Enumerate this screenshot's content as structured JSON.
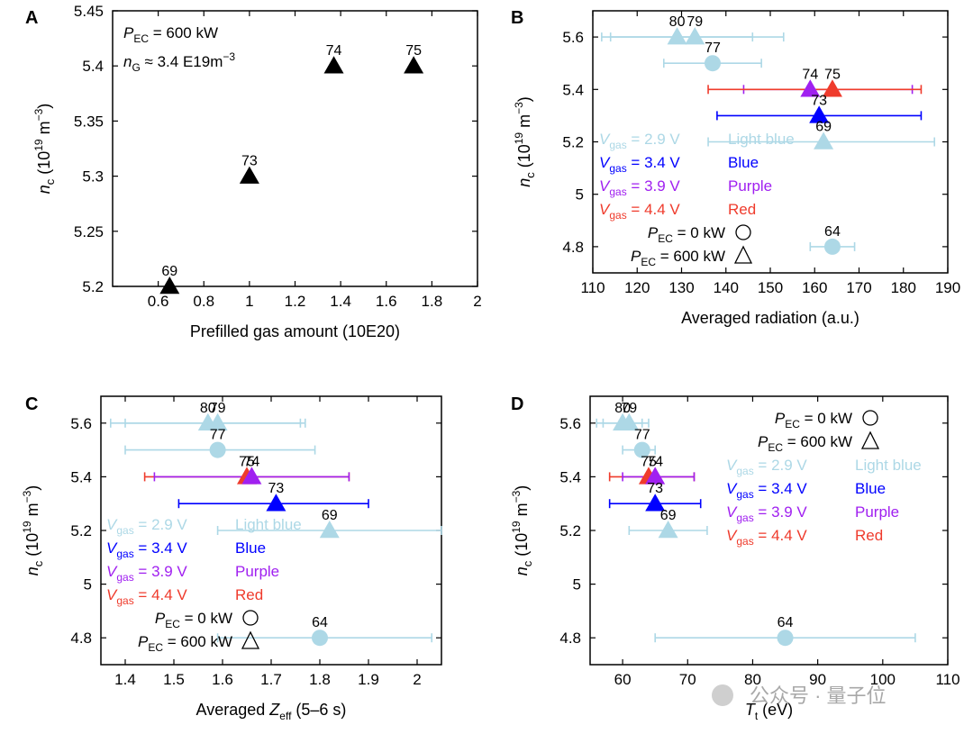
{
  "watermark": "公众号 · 量子位",
  "colors": {
    "Light blue": "#add8e6",
    "Blue": "#0000ff",
    "Purple": "#a020f0",
    "Red": "#ef3b2c",
    "Black": "#000000"
  },
  "chart_data": [
    {
      "panel": "A",
      "type": "scatter",
      "xlabel": "Prefilled gas amount (10E20)",
      "ylabel": "n_c (10^19 m^-3)",
      "xlim": [
        0.4,
        2.0
      ],
      "ylim": [
        5.2,
        5.45
      ],
      "xticks": [
        0.6,
        0.8,
        1.0,
        1.2,
        1.4,
        1.6,
        1.8,
        2.0
      ],
      "xticklabels": [
        "0.6",
        "0.8",
        "1",
        "1.2",
        "1.4",
        "1.6",
        "1.8",
        "2"
      ],
      "yticks": [
        5.2,
        5.25,
        5.3,
        5.35,
        5.4,
        5.45
      ],
      "yticklabels": [
        "5.2",
        "5.25",
        "5.3",
        "5.35",
        "5.4",
        "5.45"
      ],
      "annotations": [
        "P_EC = 600 kW",
        "n_G ≈ 3.4 E19m^-3"
      ],
      "points": [
        {
          "label": "69",
          "x": 0.65,
          "y": 5.2,
          "marker": "triangle",
          "color": "Black"
        },
        {
          "label": "73",
          "x": 1.0,
          "y": 5.3,
          "marker": "triangle",
          "color": "Black"
        },
        {
          "label": "74",
          "x": 1.37,
          "y": 5.4,
          "marker": "triangle",
          "color": "Black"
        },
        {
          "label": "75",
          "x": 1.72,
          "y": 5.4,
          "marker": "triangle",
          "color": "Black"
        }
      ]
    },
    {
      "panel": "B",
      "type": "scatter",
      "xlabel": "Averaged radiation (a.u.)",
      "ylabel": "n_c (10^19 m^-3)",
      "xlim": [
        110,
        190
      ],
      "ylim": [
        4.7,
        5.7
      ],
      "xticks": [
        110,
        120,
        130,
        140,
        150,
        160,
        170,
        180,
        190
      ],
      "xticklabels": [
        "110",
        "120",
        "130",
        "140",
        "150",
        "160",
        "170",
        "180",
        "190"
      ],
      "yticks": [
        4.8,
        5.0,
        5.2,
        5.4,
        5.6
      ],
      "yticklabels": [
        "4.8",
        "5",
        "5.2",
        "5.4",
        "5.6"
      ],
      "points": [
        {
          "label": "80",
          "x": 129,
          "y": 5.6,
          "xerr": [
            112,
            146
          ],
          "marker": "triangle",
          "color": "Light blue"
        },
        {
          "label": "79",
          "x": 133,
          "y": 5.6,
          "xerr": [
            114,
            153
          ],
          "marker": "triangle",
          "color": "Light blue"
        },
        {
          "label": "77",
          "x": 137,
          "y": 5.5,
          "xerr": [
            126,
            148
          ],
          "marker": "circle",
          "color": "Light blue"
        },
        {
          "label": "74",
          "x": 159,
          "y": 5.4,
          "xerr": [
            144,
            182
          ],
          "marker": "triangle",
          "color": "Purple"
        },
        {
          "label": "75",
          "x": 164,
          "y": 5.4,
          "xerr": [
            136,
            184
          ],
          "marker": "triangle",
          "color": "Red"
        },
        {
          "label": "73",
          "x": 161,
          "y": 5.3,
          "xerr": [
            138,
            184
          ],
          "marker": "triangle",
          "color": "Blue"
        },
        {
          "label": "69",
          "x": 162,
          "y": 5.2,
          "xerr": [
            136,
            187
          ],
          "marker": "triangle",
          "color": "Light blue"
        },
        {
          "label": "64",
          "x": 164,
          "y": 4.8,
          "xerr": [
            159,
            169
          ],
          "marker": "circle",
          "color": "Light blue"
        }
      ]
    },
    {
      "panel": "C",
      "type": "scatter",
      "xlabel": "Averaged Z_eff (5–6 s)",
      "ylabel": "n_c (10^19 m^-3)",
      "xlim": [
        1.35,
        2.05
      ],
      "ylim": [
        4.7,
        5.7
      ],
      "xticks": [
        1.4,
        1.5,
        1.6,
        1.7,
        1.8,
        1.9,
        2.0
      ],
      "xticklabels": [
        "1.4",
        "1.5",
        "1.6",
        "1.7",
        "1.8",
        "1.9",
        "2"
      ],
      "yticks": [
        4.8,
        5.0,
        5.2,
        5.4,
        5.6
      ],
      "yticklabels": [
        "4.8",
        "5",
        "5.2",
        "5.4",
        "5.6"
      ],
      "points": [
        {
          "label": "80",
          "x": 1.57,
          "y": 5.6,
          "xerr": [
            1.37,
            1.76
          ],
          "marker": "triangle",
          "color": "Light blue"
        },
        {
          "label": "79",
          "x": 1.59,
          "y": 5.6,
          "xerr": [
            1.4,
            1.77
          ],
          "marker": "triangle",
          "color": "Light blue"
        },
        {
          "label": "77",
          "x": 1.59,
          "y": 5.5,
          "xerr": [
            1.4,
            1.79
          ],
          "marker": "circle",
          "color": "Light blue"
        },
        {
          "label": "75",
          "x": 1.65,
          "y": 5.4,
          "xerr": [
            1.44,
            1.86
          ],
          "marker": "triangle",
          "color": "Red"
        },
        {
          "label": "74",
          "x": 1.66,
          "y": 5.4,
          "xerr": [
            1.46,
            1.86
          ],
          "marker": "triangle",
          "color": "Purple"
        },
        {
          "label": "73",
          "x": 1.71,
          "y": 5.3,
          "xerr": [
            1.51,
            1.9
          ],
          "marker": "triangle",
          "color": "Blue"
        },
        {
          "label": "69",
          "x": 1.82,
          "y": 5.2,
          "xerr": [
            1.59,
            2.05
          ],
          "marker": "triangle",
          "color": "Light blue"
        },
        {
          "label": "64",
          "x": 1.8,
          "y": 4.8,
          "xerr": [
            1.59,
            2.03
          ],
          "marker": "circle",
          "color": "Light blue"
        }
      ]
    },
    {
      "panel": "D",
      "type": "scatter",
      "xlabel": "T_t (eV)",
      "ylabel": "n_c (10^19 m^-3)",
      "xlim": [
        55,
        110
      ],
      "ylim": [
        4.7,
        5.7
      ],
      "xticks": [
        60,
        70,
        80,
        90,
        100,
        110
      ],
      "xticklabels": [
        "60",
        "70",
        "80",
        "90",
        "100",
        "110"
      ],
      "yticks": [
        4.8,
        5.0,
        5.2,
        5.4,
        5.6
      ],
      "yticklabels": [
        "4.8",
        "5",
        "5.2",
        "5.4",
        "5.6"
      ],
      "points": [
        {
          "label": "80",
          "x": 60,
          "y": 5.6,
          "xerr": [
            56,
            63
          ],
          "marker": "triangle",
          "color": "Light blue"
        },
        {
          "label": "79",
          "x": 61,
          "y": 5.6,
          "xerr": [
            57,
            64
          ],
          "marker": "triangle",
          "color": "Light blue"
        },
        {
          "label": "77",
          "x": 63,
          "y": 5.5,
          "xerr": [
            60,
            65
          ],
          "marker": "circle",
          "color": "Light blue"
        },
        {
          "label": "75",
          "x": 64,
          "y": 5.4,
          "xerr": [
            58,
            71
          ],
          "marker": "triangle",
          "color": "Red"
        },
        {
          "label": "74",
          "x": 65,
          "y": 5.4,
          "xerr": [
            60,
            71
          ],
          "marker": "triangle",
          "color": "Purple"
        },
        {
          "label": "73",
          "x": 65,
          "y": 5.3,
          "xerr": [
            58,
            72
          ],
          "marker": "triangle",
          "color": "Blue"
        },
        {
          "label": "69",
          "x": 67,
          "y": 5.2,
          "xerr": [
            61,
            73
          ],
          "marker": "triangle",
          "color": "Light blue"
        },
        {
          "label": "64",
          "x": 85,
          "y": 4.8,
          "xerr": [
            65,
            105
          ],
          "marker": "circle",
          "color": "Light blue"
        }
      ]
    }
  ],
  "legend": {
    "vgas_items": [
      {
        "value": "= 2.9 V",
        "color_name": "Light blue"
      },
      {
        "value": "= 3.4 V",
        "color_name": "Blue"
      },
      {
        "value": "= 3.9 V",
        "color_name": "Purple"
      },
      {
        "value": "= 4.4 V",
        "color_name": "Red"
      }
    ],
    "marker_items": [
      {
        "value": "= 0 kW",
        "marker": "circle"
      },
      {
        "value": "= 600 kW",
        "marker": "triangle"
      }
    ]
  }
}
